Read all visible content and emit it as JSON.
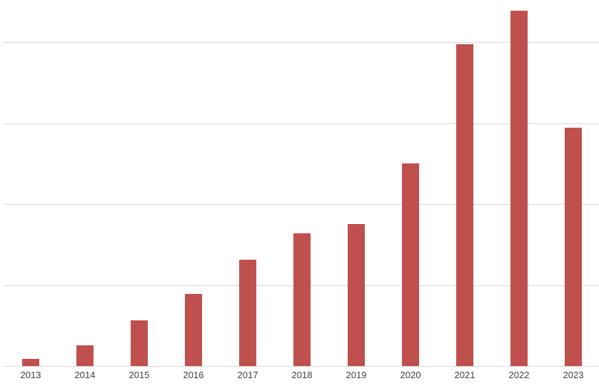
{
  "chart_data": {
    "type": "bar",
    "title": "",
    "xlabel": "",
    "ylabel": "",
    "categories": [
      "2013",
      "2014",
      "2015",
      "2016",
      "2017",
      "2018",
      "2019",
      "2020",
      "2021",
      "2022",
      "2023"
    ],
    "values": [
      9,
      26,
      56,
      89,
      131,
      164,
      175,
      250,
      397,
      439,
      294
    ],
    "ylim": [
      0,
      452
    ],
    "gridline_values": [
      100,
      200,
      300,
      400
    ],
    "y_axis_labels_visible": false,
    "value_units": "relative (one gridline interval = 100)",
    "legend": null,
    "grid": true,
    "colors": {
      "bar": "#C0504D",
      "gridline": "#D9D9D9",
      "axis_line": "#D9D9D9",
      "tick_label": "#404040",
      "background": "#FFFFFF"
    }
  }
}
